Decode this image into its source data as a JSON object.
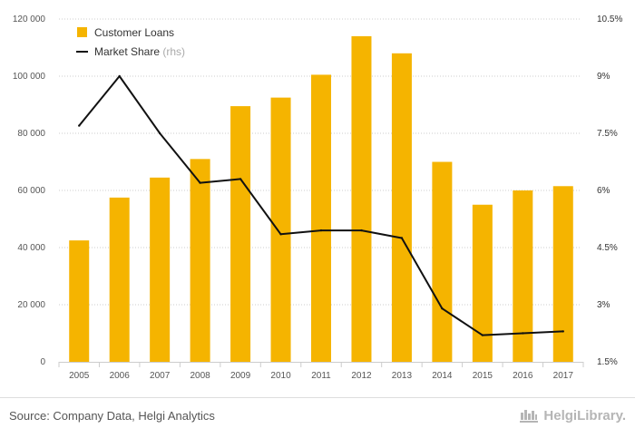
{
  "chart_data": {
    "type": "bar",
    "categories": [
      "2005",
      "2006",
      "2007",
      "2008",
      "2009",
      "2010",
      "2011",
      "2012",
      "2013",
      "2014",
      "2015",
      "2016",
      "2017"
    ],
    "series": [
      {
        "name": "Customer Loans",
        "axis": "left",
        "kind": "bar",
        "color": "#f5b400",
        "values": [
          42500,
          57500,
          64500,
          71000,
          89500,
          92500,
          100500,
          114000,
          108000,
          70000,
          55000,
          60000,
          61500
        ]
      },
      {
        "name": "Market Share",
        "axis": "right",
        "kind": "line",
        "color": "#111111",
        "values": [
          7.7,
          9.0,
          7.5,
          6.2,
          6.3,
          4.85,
          4.95,
          4.95,
          4.75,
          2.9,
          2.2,
          2.25,
          2.3
        ]
      }
    ],
    "left_axis": {
      "ylim": [
        0,
        120000
      ],
      "ticks": [
        0,
        20000,
        40000,
        60000,
        80000,
        100000,
        120000
      ],
      "tick_labels": [
        "0",
        "20 000",
        "40 000",
        "60 000",
        "80 000",
        "100 000",
        "120 000"
      ]
    },
    "right_axis": {
      "ylim": [
        1.5,
        10.5
      ],
      "ticks": [
        1.5,
        3,
        4.5,
        6,
        7.5,
        9,
        10.5
      ],
      "tick_labels": [
        "1.5%",
        "3%",
        "4.5%",
        "6%",
        "7.5%",
        "9%",
        "10.5%"
      ]
    },
    "legend": {
      "position": "top-left",
      "items": [
        {
          "label": "Customer Loans",
          "suffix": "",
          "marker": "square",
          "color": "#f5b400"
        },
        {
          "label": "Market Share",
          "suffix": "(rhs)",
          "marker": "line",
          "color": "#111111"
        }
      ]
    },
    "grid": true,
    "title": "",
    "xlabel": "",
    "ylabel": ""
  },
  "footer": {
    "source": "Source: Company Data, Helgi Analytics",
    "brand": "HelgiLibrary."
  },
  "colors": {
    "left_tick": "#f5b400",
    "grid": "#cccccc",
    "brand": "#b5b5b5"
  }
}
